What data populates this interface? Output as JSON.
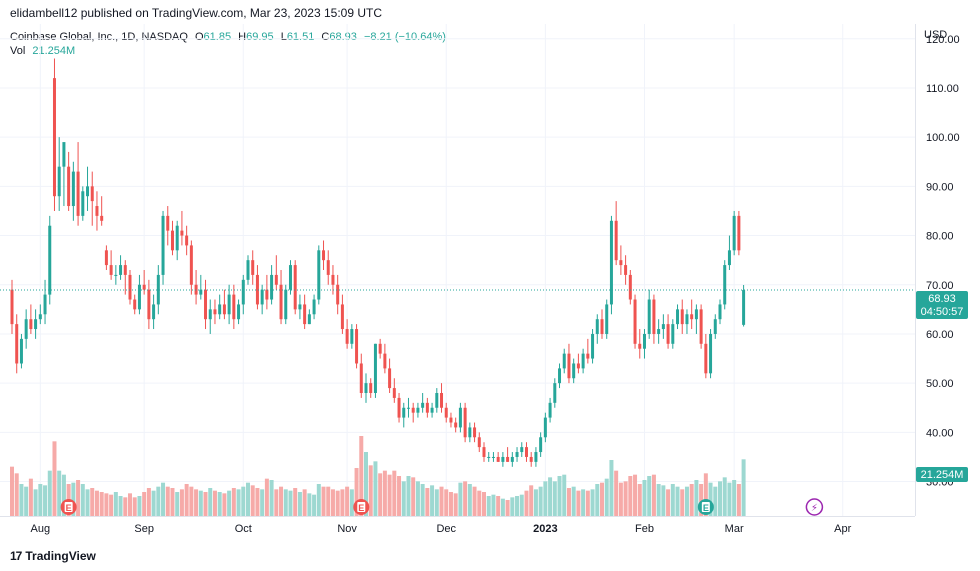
{
  "attribution": "elidambell12 published on TradingView.com, Mar 23, 2023 15:09 UTC",
  "legend": {
    "symbol": "Coinbase Global, Inc., 1D, NASDAQ",
    "open_label": "O",
    "open": "61.85",
    "high_label": "H",
    "high": "69.95",
    "low_label": "L",
    "low": "61.51",
    "close_label": "C",
    "close": "68.93",
    "change": "−8.21 (−10.64%)",
    "vol_label": "Vol",
    "vol": "21.254M"
  },
  "currency": "USD",
  "price_tag": {
    "price": "68.93",
    "countdown": "04:50:57",
    "color": "#26a69a"
  },
  "volume_tag": {
    "value": "21.254M",
    "color": "#26a69a"
  },
  "brand": "TradingView",
  "colors": {
    "up": "#26a69a",
    "down": "#ef5350",
    "up_vol": "#9dd8d1",
    "down_vol": "#f6aaa8",
    "grid": "#f0f3fa"
  },
  "chart_data": {
    "type": "candlestick",
    "ylim": [
      23,
      123
    ],
    "y_ticks": [
      30,
      40,
      50,
      60,
      70,
      80,
      90,
      100,
      110,
      120
    ],
    "y_tick_labels": [
      "30.00",
      "40.00",
      "50.00",
      "60.00",
      "70.00",
      "80.00",
      "90.00",
      "100.00",
      "110.00",
      "120.00"
    ],
    "x_ticks": [
      {
        "label": "Aug",
        "index": 6,
        "bold": false
      },
      {
        "label": "Sep",
        "index": 28,
        "bold": false
      },
      {
        "label": "Oct",
        "index": 49,
        "bold": false
      },
      {
        "label": "Nov",
        "index": 71,
        "bold": false
      },
      {
        "label": "Dec",
        "index": 92,
        "bold": false
      },
      {
        "label": "2023",
        "index": 113,
        "bold": true
      },
      {
        "label": "Feb",
        "index": 134,
        "bold": false
      },
      {
        "label": "Mar",
        "index": 153,
        "bold": false
      },
      {
        "label": "Apr",
        "index": 176,
        "bold": false
      }
    ],
    "earnings_markers": [
      {
        "index": 12,
        "label": "E"
      },
      {
        "index": 74,
        "label": "E"
      },
      {
        "index": 147,
        "label": "E"
      }
    ],
    "split_marker": {
      "index": 170,
      "label": "⚡"
    },
    "candles": [
      [
        69.0,
        71.0,
        60.0,
        62.0,
        18.5
      ],
      [
        62.0,
        64.0,
        52.0,
        54.0,
        16.0
      ],
      [
        54.0,
        60.0,
        53.0,
        59.0,
        12.0
      ],
      [
        59.0,
        65.0,
        57.0,
        63.0,
        11.0
      ],
      [
        63.0,
        66.0,
        60.0,
        61.0,
        14.0
      ],
      [
        61.0,
        65.0,
        59.0,
        63.0,
        10.0
      ],
      [
        63.0,
        66.0,
        62.0,
        64.0,
        12.0
      ],
      [
        64.0,
        71.0,
        62.0,
        68.0,
        11.5
      ],
      [
        68.0,
        84.0,
        66.0,
        82.0,
        17.0
      ],
      [
        112.0,
        116.0,
        85.0,
        88.0,
        28.0
      ],
      [
        88.0,
        100.0,
        85.0,
        94.0,
        17.0
      ],
      [
        94.0,
        98.0,
        86.0,
        99.0,
        15.5
      ],
      [
        94.0,
        97.0,
        85.0,
        86.0,
        12.0
      ],
      [
        86.0,
        95.0,
        83.0,
        93.0,
        12.5
      ],
      [
        93.0,
        99.0,
        82.0,
        84.0,
        13.5
      ],
      [
        84.0,
        90.0,
        83.0,
        89.0,
        12.0
      ],
      [
        88.0,
        94.0,
        85.0,
        90.0,
        10.0
      ],
      [
        90.0,
        93.0,
        82.0,
        87.0,
        10.5
      ],
      [
        86.0,
        89.0,
        81.0,
        84.0,
        9.5
      ],
      [
        84.0,
        88.0,
        82.0,
        83.0,
        9.0
      ],
      [
        77.0,
        78.0,
        73.0,
        74.0,
        8.5
      ],
      [
        74.0,
        77.0,
        71.0,
        72.0,
        8.0
      ],
      [
        72.0,
        74.0,
        70.0,
        72.0,
        9.0
      ],
      [
        72.0,
        76.0,
        71.0,
        74.0,
        7.5
      ],
      [
        74.0,
        75.0,
        68.0,
        72.0,
        7.0
      ],
      [
        72.0,
        73.0,
        66.0,
        67.0,
        8.5
      ],
      [
        67.0,
        68.0,
        64.0,
        65.0,
        7.0
      ],
      [
        65.0,
        72.0,
        64.0,
        70.0,
        7.5
      ],
      [
        70.0,
        73.0,
        68.0,
        69.0,
        9.0
      ],
      [
        69.0,
        71.0,
        61.0,
        63.0,
        10.5
      ],
      [
        63.0,
        68.0,
        61.0,
        66.0,
        9.5
      ],
      [
        66.0,
        74.0,
        64.0,
        72.0,
        11.0
      ],
      [
        72.0,
        85.0,
        70.0,
        84.0,
        12.5
      ],
      [
        84.0,
        86.0,
        78.0,
        81.0,
        11.0
      ],
      [
        81.0,
        83.0,
        76.0,
        77.0,
        10.5
      ],
      [
        77.0,
        83.0,
        75.0,
        82.0,
        9.0
      ],
      [
        81.0,
        85.0,
        78.0,
        80.0,
        10.0
      ],
      [
        80.0,
        82.0,
        76.0,
        78.0,
        12.0
      ],
      [
        78.0,
        79.0,
        68.0,
        70.0,
        11.0
      ],
      [
        70.0,
        73.0,
        66.0,
        68.0,
        10.0
      ],
      [
        68.0,
        72.0,
        67.0,
        69.0,
        9.5
      ],
      [
        69.0,
        71.0,
        61.0,
        63.0,
        9.0
      ],
      [
        63.0,
        67.0,
        60.0,
        65.0,
        10.5
      ],
      [
        65.0,
        67.0,
        62.0,
        64.0,
        9.5
      ],
      [
        64.0,
        68.0,
        63.0,
        66.0,
        9.0
      ],
      [
        66.0,
        69.0,
        63.0,
        64.0,
        8.5
      ],
      [
        64.0,
        70.0,
        62.0,
        68.0,
        9.5
      ],
      [
        68.0,
        70.0,
        61.0,
        63.0,
        10.5
      ],
      [
        63.0,
        67.0,
        62.0,
        66.0,
        10.0
      ],
      [
        66.0,
        72.0,
        64.0,
        71.0,
        11.0
      ],
      [
        71.0,
        76.0,
        70.0,
        75.0,
        12.5
      ],
      [
        75.0,
        77.0,
        70.0,
        72.0,
        11.5
      ],
      [
        72.0,
        74.0,
        65.0,
        66.0,
        10.5
      ],
      [
        66.0,
        70.0,
        64.0,
        69.0,
        10.0
      ],
      [
        69.0,
        72.0,
        65.0,
        67.0,
        14.0
      ],
      [
        67.0,
        74.0,
        66.0,
        72.0,
        13.5
      ],
      [
        72.0,
        76.0,
        69.0,
        70.0,
        10.0
      ],
      [
        70.0,
        73.0,
        62.0,
        63.0,
        11.0
      ],
      [
        63.0,
        70.0,
        62.0,
        69.0,
        10.0
      ],
      [
        69.0,
        75.0,
        68.0,
        74.0,
        9.5
      ],
      [
        74.0,
        75.0,
        64.0,
        65.0,
        10.5
      ],
      [
        65.0,
        68.0,
        63.0,
        66.0,
        9.0
      ],
      [
        66.0,
        68.0,
        61.0,
        62.0,
        10.0
      ],
      [
        62.0,
        65.0,
        62.0,
        64.0,
        8.5
      ],
      [
        64.0,
        68.0,
        63.0,
        67.0,
        8.0
      ],
      [
        67.0,
        78.0,
        66.0,
        77.0,
        12.0
      ],
      [
        77.0,
        79.0,
        73.0,
        75.0,
        11.0
      ],
      [
        75.0,
        77.0,
        70.0,
        72.0,
        11.0
      ],
      [
        72.0,
        74.0,
        68.0,
        70.0,
        10.0
      ],
      [
        70.0,
        72.0,
        64.0,
        66.0,
        9.5
      ],
      [
        66.0,
        68.0,
        60.0,
        61.0,
        10.0
      ],
      [
        61.0,
        63.0,
        57.0,
        58.0,
        11.0
      ],
      [
        58.0,
        62.0,
        57.0,
        61.0,
        10.0
      ],
      [
        61.0,
        62.0,
        53.0,
        54.0,
        18.0
      ],
      [
        54.0,
        56.0,
        47.0,
        48.0,
        30.0
      ],
      [
        48.0,
        52.0,
        46.0,
        50.0,
        24.0
      ],
      [
        50.0,
        51.0,
        47.0,
        48.0,
        19.0
      ],
      [
        48.0,
        58.0,
        47.0,
        58.0,
        20.5
      ],
      [
        58.0,
        59.0,
        55.0,
        56.0,
        16.0
      ],
      [
        56.0,
        58.0,
        52.0,
        53.0,
        17.0
      ],
      [
        53.0,
        55.0,
        48.0,
        49.0,
        15.5
      ],
      [
        49.0,
        51.0,
        46.0,
        47.0,
        17.0
      ],
      [
        47.0,
        48.0,
        42.0,
        43.0,
        15.0
      ],
      [
        43.0,
        46.0,
        41.0,
        45.0,
        13.0
      ],
      [
        45.0,
        47.0,
        43.0,
        45.0,
        15.0
      ],
      [
        45.0,
        46.0,
        42.0,
        44.0,
        14.5
      ],
      [
        44.0,
        46.0,
        43.0,
        45.0,
        13.0
      ],
      [
        45.0,
        48.0,
        44.0,
        46.0,
        12.0
      ],
      [
        46.0,
        47.0,
        43.0,
        44.0,
        10.5
      ],
      [
        44.0,
        46.0,
        43.0,
        45.0,
        11.5
      ],
      [
        45.0,
        49.0,
        44.0,
        48.0,
        10.0
      ],
      [
        48.0,
        50.0,
        44.0,
        45.0,
        11.0
      ],
      [
        45.0,
        46.0,
        42.0,
        43.0,
        10.0
      ],
      [
        43.0,
        44.0,
        41.0,
        42.0,
        9.0
      ],
      [
        42.0,
        43.0,
        40.0,
        41.0,
        8.5
      ],
      [
        41.0,
        46.0,
        40.0,
        45.0,
        12.5
      ],
      [
        45.0,
        46.0,
        38.0,
        39.0,
        13.0
      ],
      [
        39.0,
        42.0,
        38.0,
        41.0,
        12.0
      ],
      [
        41.0,
        42.0,
        38.0,
        39.0,
        11.0
      ],
      [
        39.0,
        40.0,
        36.0,
        37.0,
        9.5
      ],
      [
        37.0,
        38.0,
        34.0,
        35.0,
        9.0
      ],
      [
        35.0,
        36.0,
        34.0,
        35.0,
        7.5
      ],
      [
        35.0,
        36.0,
        34.0,
        35.0,
        8.0
      ],
      [
        35.0,
        36.0,
        34.0,
        34.0,
        7.5
      ],
      [
        34.0,
        36.0,
        33.0,
        35.0,
        6.5
      ],
      [
        35.0,
        37.0,
        34.0,
        34.0,
        6.0
      ],
      [
        34.0,
        36.0,
        33.0,
        35.0,
        7.0
      ],
      [
        35.0,
        37.0,
        34.0,
        36.0,
        7.5
      ],
      [
        36.0,
        38.0,
        35.0,
        37.0,
        8.0
      ],
      [
        37.0,
        38.0,
        34.0,
        35.0,
        9.5
      ],
      [
        35.0,
        36.0,
        33.0,
        34.0,
        11.5
      ],
      [
        34.0,
        37.0,
        33.0,
        36.0,
        10.0
      ],
      [
        36.0,
        40.0,
        35.0,
        39.0,
        11.0
      ],
      [
        39.0,
        44.0,
        38.0,
        43.0,
        13.0
      ],
      [
        43.0,
        47.0,
        42.0,
        46.0,
        14.5
      ],
      [
        46.0,
        51.0,
        45.0,
        50.0,
        13.0
      ],
      [
        50.0,
        54.0,
        49.0,
        53.0,
        15.0
      ],
      [
        53.0,
        57.0,
        52.0,
        56.0,
        15.5
      ],
      [
        56.0,
        58.0,
        50.0,
        51.0,
        10.5
      ],
      [
        51.0,
        55.0,
        50.0,
        54.0,
        11.0
      ],
      [
        54.0,
        56.0,
        52.0,
        53.0,
        9.5
      ],
      [
        53.0,
        57.0,
        52.0,
        56.0,
        10.0
      ],
      [
        56.0,
        59.0,
        54.0,
        55.0,
        9.5
      ],
      [
        55.0,
        61.0,
        54.0,
        60.0,
        10.0
      ],
      [
        60.0,
        64.0,
        58.0,
        63.0,
        12.0
      ],
      [
        63.0,
        65.0,
        59.0,
        60.0,
        12.5
      ],
      [
        60.0,
        67.0,
        59.0,
        66.0,
        14.0
      ],
      [
        66.0,
        84.0,
        64.0,
        83.0,
        21.0
      ],
      [
        83.0,
        87.0,
        74.0,
        75.0,
        17.0
      ],
      [
        75.0,
        78.0,
        72.0,
        74.0,
        12.5
      ],
      [
        74.0,
        76.0,
        70.0,
        72.0,
        13.0
      ],
      [
        72.0,
        73.0,
        66.0,
        67.0,
        15.0
      ],
      [
        67.0,
        68.0,
        57.0,
        58.0,
        15.5
      ],
      [
        58.0,
        61.0,
        55.0,
        57.0,
        12.0
      ],
      [
        57.0,
        61.0,
        55.0,
        60.0,
        13.5
      ],
      [
        60.0,
        69.0,
        59.0,
        67.0,
        15.0
      ],
      [
        67.0,
        68.0,
        58.0,
        60.0,
        15.5
      ],
      [
        60.0,
        63.0,
        58.0,
        61.0,
        12.0
      ],
      [
        61.0,
        64.0,
        59.0,
        62.0,
        11.5
      ],
      [
        62.0,
        64.0,
        57.0,
        58.0,
        10.0
      ],
      [
        58.0,
        63.0,
        57.0,
        62.0,
        12.0
      ],
      [
        62.0,
        66.0,
        61.0,
        65.0,
        11.0
      ],
      [
        65.0,
        67.0,
        60.0,
        62.0,
        10.0
      ],
      [
        62.0,
        65.0,
        60.0,
        64.0,
        11.0
      ],
      [
        64.0,
        67.0,
        61.0,
        63.0,
        12.0
      ],
      [
        63.0,
        66.0,
        60.0,
        65.0,
        13.5
      ],
      [
        65.0,
        66.0,
        57.0,
        58.0,
        12.0
      ],
      [
        58.0,
        60.0,
        51.0,
        52.0,
        16.0
      ],
      [
        52.0,
        61.0,
        51.0,
        60.0,
        12.5
      ],
      [
        60.0,
        64.0,
        59.0,
        63.0,
        11.0
      ],
      [
        63.0,
        67.0,
        62.0,
        66.0,
        13.0
      ],
      [
        66.0,
        75.0,
        65.0,
        74.0,
        14.5
      ],
      [
        74.0,
        80.0,
        73.0,
        77.0,
        12.5
      ],
      [
        77.0,
        85.0,
        76.0,
        84.0,
        13.5
      ],
      [
        84.0,
        85.0,
        76.0,
        77.0,
        12.0
      ],
      [
        61.85,
        69.95,
        61.51,
        68.93,
        21.254
      ]
    ]
  }
}
